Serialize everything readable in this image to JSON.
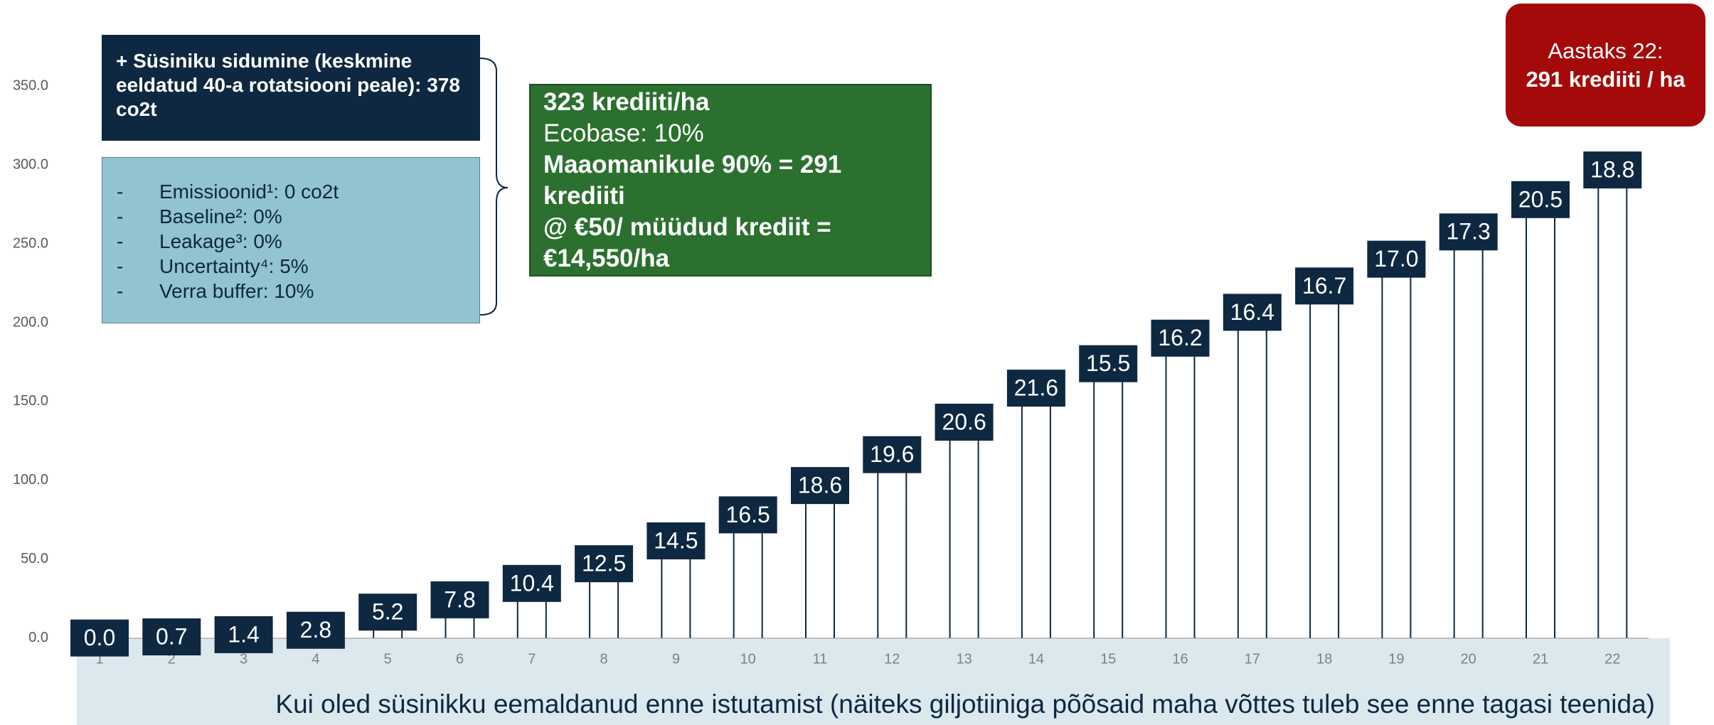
{
  "chart_data": {
    "type": "waterfall",
    "categories": [
      "1",
      "2",
      "3",
      "4",
      "5",
      "6",
      "7",
      "8",
      "9",
      "10",
      "11",
      "12",
      "13",
      "14",
      "15",
      "16",
      "17",
      "18",
      "19",
      "20",
      "21",
      "22"
    ],
    "values": [
      0,
      0.7,
      1.4,
      2.8,
      5.2,
      7.8,
      10.4,
      12.5,
      14.5,
      16.5,
      18.6,
      19.6,
      20.6,
      21.6,
      15.5,
      16.2,
      16.4,
      16.7,
      17.0,
      17.3,
      20.5,
      18.8
    ],
    "value_labels": [
      "0.0",
      "0.7",
      "1.4",
      "2.8",
      "5.2",
      "7.8",
      "10.4",
      "12.5",
      "14.5",
      "16.5",
      "18.6",
      "19.6",
      "20.6",
      "21.6",
      "15.5",
      "16.2",
      "16.4",
      "16.7",
      "17.0",
      "17.3",
      "20.5",
      "18.8"
    ],
    "color": "#0e2841",
    "ylim": [
      0,
      350
    ],
    "yticks": [
      {
        "value": 0,
        "label": "0.0"
      },
      {
        "value": 50,
        "label": "50.0"
      },
      {
        "value": 100,
        "label": "100.0"
      },
      {
        "value": 150,
        "label": "150.0"
      },
      {
        "value": 200,
        "label": "200.0"
      },
      {
        "value": 250,
        "label": "250.0"
      },
      {
        "value": 300,
        "label": "300.0"
      },
      {
        "value": 350,
        "label": "350.0"
      }
    ],
    "info_box": {
      "title": "+ Süsiniku sidumine (keskmine eeldatud 40-a rotatsiooni peale): 378 co2t",
      "items": [
        "Emissioonid¹: 0 co2t",
        "Baseline²: 0%",
        "Leakage³: 0%",
        "Uncertainty⁴: 5%",
        "Verra buffer: 10%"
      ]
    },
    "result_box": [
      "323 krediiti/ha",
      "Ecobase: 10%",
      "Maaomanikule 90% = 291 krediiti",
      "@ €50/ müüdud krediit = €14,550/ha"
    ],
    "highlight_box": [
      "Aastaks 22:",
      "291 krediiti / ha"
    ],
    "footnote": "Kui oled süsinikku eemaldanud enne istutamist (näiteks giljotiiniga põõsaid maha võttes tuleb see enne tagasi teenida)"
  }
}
